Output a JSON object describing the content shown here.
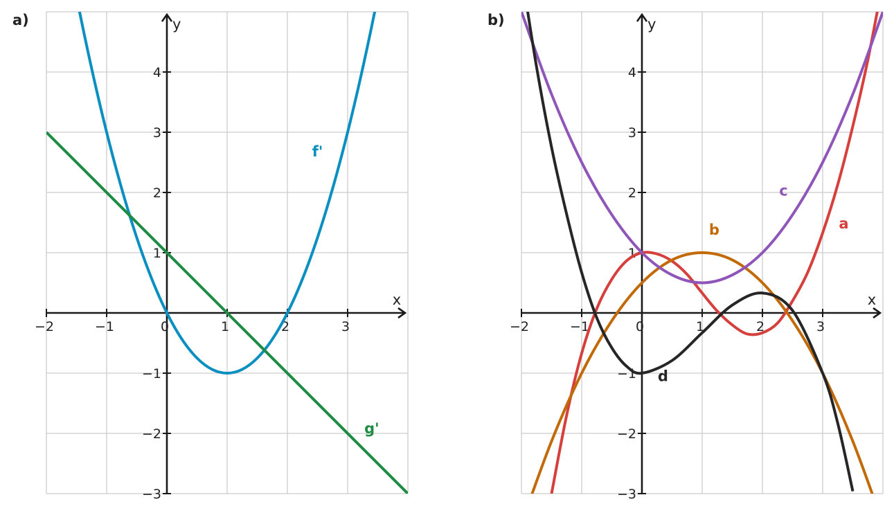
{
  "chart_data": [
    {
      "type": "line",
      "panel_label": "a)",
      "xlabel": "x",
      "ylabel": "y",
      "xlim": [
        -2,
        4
      ],
      "ylim": [
        -3,
        5
      ],
      "x_ticks": [
        -2,
        -1,
        0,
        1,
        2,
        3
      ],
      "x_tick_labels": [
        "−2",
        "−1",
        "0",
        "1",
        "2",
        "3"
      ],
      "y_ticks": [
        -3,
        -2,
        -1,
        1,
        2,
        3,
        4
      ],
      "y_tick_labels": [
        "−3",
        "−2",
        "−1",
        "1",
        "2",
        "3",
        "4"
      ],
      "grid": true,
      "series": [
        {
          "name": "f'",
          "color": "#0a8fc0",
          "x": [
            -2,
            -1.5,
            -1,
            -0.5,
            0,
            0.5,
            1,
            1.5,
            2,
            2.5,
            3,
            3.5,
            4
          ],
          "y": [
            8,
            5.25,
            3,
            1.25,
            0,
            -0.75,
            -1,
            -0.75,
            0,
            1.25,
            3,
            5.25,
            8
          ]
        },
        {
          "name": "g'",
          "color": "#1e8c44",
          "x": [
            -2,
            4
          ],
          "y": [
            3,
            -3
          ]
        }
      ]
    },
    {
      "type": "line",
      "panel_label": "b)",
      "xlabel": "x",
      "ylabel": "y",
      "xlim": [
        -2,
        4
      ],
      "ylim": [
        -3,
        5
      ],
      "x_ticks": [
        -2,
        -1,
        0,
        1,
        2,
        3
      ],
      "x_tick_labels": [
        "−2",
        "−1",
        "0",
        "1",
        "2",
        "3"
      ],
      "y_ticks": [
        -3,
        -2,
        -1,
        1,
        2,
        3,
        4
      ],
      "y_tick_labels": [
        "−3",
        "−2",
        "−1",
        "1",
        "2",
        "3",
        "4"
      ],
      "grid": true,
      "series": [
        {
          "name": "a",
          "color": "#d6403c",
          "x": [
            -1.5,
            -1.25,
            -1,
            -0.75,
            -0.5,
            -0.25,
            0,
            0.25,
            0.5,
            0.75,
            1,
            1.25,
            1.5,
            1.75,
            2,
            2.25,
            2.5,
            2.75,
            3,
            3.25,
            3.5,
            3.75,
            4
          ],
          "y": [
            -3.0,
            -1.7,
            -0.67,
            0.07,
            0.56,
            0.87,
            1.0,
            0.98,
            0.86,
            0.64,
            0.33,
            0.03,
            -0.2,
            -0.35,
            -0.33,
            -0.17,
            0.2,
            0.67,
            1.33,
            2.13,
            3.1,
            4.2,
            5.5
          ]
        },
        {
          "name": "b",
          "color": "#c26a08",
          "x": [
            -2,
            -1.5,
            -1,
            -0.5,
            0,
            0.5,
            1,
            1.5,
            2,
            2.5,
            3,
            3.5,
            4
          ],
          "y": [
            -3.5,
            -2.13,
            -1.0,
            -0.13,
            0.5,
            0.88,
            1.0,
            0.88,
            0.5,
            -0.13,
            -1.0,
            -2.13,
            -3.5
          ]
        },
        {
          "name": "c",
          "color": "#9055b8",
          "x": [
            -2,
            -1.5,
            -1,
            -0.5,
            0,
            0.5,
            1,
            1.5,
            2,
            2.5,
            3,
            3.5,
            4
          ],
          "y": [
            5.0,
            3.63,
            2.5,
            1.63,
            1.0,
            0.63,
            0.5,
            0.63,
            1.0,
            1.63,
            2.5,
            3.63,
            5.0
          ]
        },
        {
          "name": "d",
          "color": "#262626",
          "x": [
            -2,
            -1.75,
            -1.5,
            -1.25,
            -1,
            -0.75,
            -0.5,
            -0.25,
            0,
            0.5,
            1,
            1.5,
            2,
            2.5,
            3,
            3.25,
            3.5
          ],
          "y": [
            5.67,
            4.09,
            2.75,
            1.64,
            0.67,
            -0.08,
            -0.58,
            -0.89,
            -1.0,
            -0.79,
            -0.33,
            0.13,
            0.33,
            0.04,
            -1.0,
            -1.83,
            -2.96
          ]
        }
      ]
    }
  ]
}
